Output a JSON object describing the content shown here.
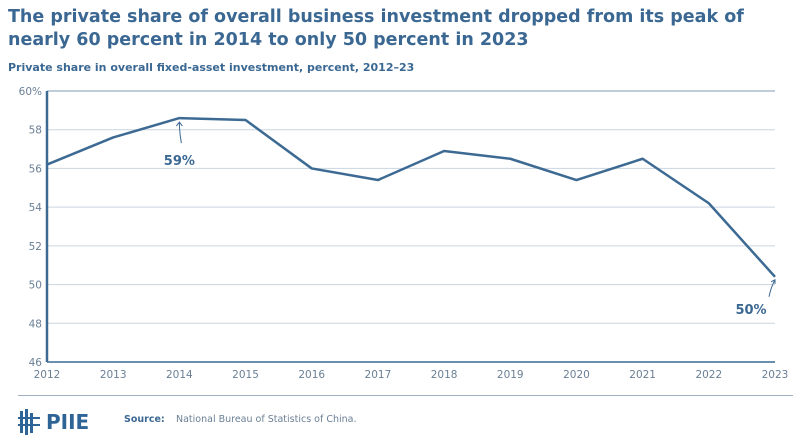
{
  "chart_data": {
    "type": "line",
    "title": "The private share of overall business investment dropped from its peak of nearly 60 percent in 2014 to only 50 percent in 2023",
    "subtitle": "Private share in overall fixed-asset investment, percent, 2012–23",
    "x": [
      2012,
      2013,
      2014,
      2015,
      2016,
      2017,
      2018,
      2019,
      2020,
      2021,
      2022,
      2023
    ],
    "values": [
      56.2,
      57.6,
      58.6,
      58.5,
      56.0,
      55.4,
      56.9,
      56.5,
      55.4,
      56.5,
      54.2,
      50.4
    ],
    "ylim": [
      46,
      60
    ],
    "yticks": [
      "46",
      "48",
      "50",
      "52",
      "54",
      "56",
      "58",
      "60%"
    ],
    "xticks": [
      "2012",
      "2013",
      "2014",
      "2015",
      "2016",
      "2017",
      "2018",
      "2019",
      "2020",
      "2021",
      "2022",
      "2023"
    ],
    "grid": true,
    "line_color": "#3d6a93",
    "annotations": [
      {
        "x": 2014,
        "y": 58.6,
        "text": "59%"
      },
      {
        "x": 2023,
        "y": 50.4,
        "text": "50%"
      }
    ]
  },
  "footer": {
    "logo": "PIIE",
    "source_label": "Source:",
    "source": "National Bureau of Statistics of China."
  }
}
